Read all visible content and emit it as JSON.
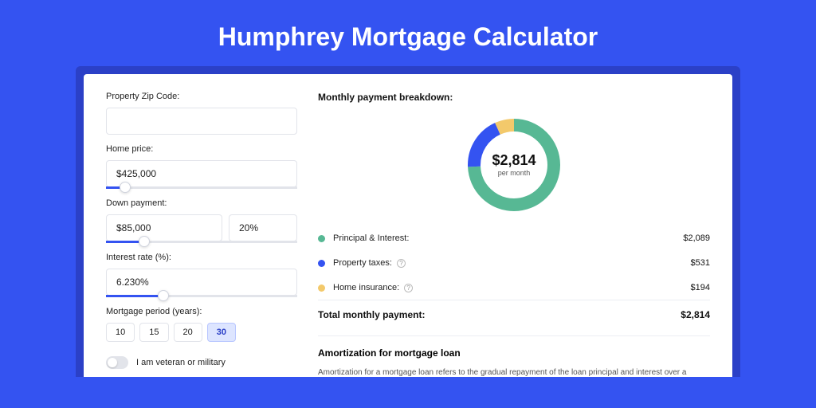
{
  "page": {
    "title": "Humphrey Mortgage Calculator"
  },
  "colors": {
    "bg": "#3453f1",
    "outer": "#2b40c7",
    "principal": "#57b894",
    "taxes": "#3453f1",
    "insurance": "#f3c96b",
    "border": "#e2e4ea"
  },
  "form": {
    "zip": {
      "label": "Property Zip Code:",
      "value": ""
    },
    "price": {
      "label": "Home price:",
      "value": "$425,000",
      "slider_pct": 10
    },
    "down": {
      "label": "Down payment:",
      "amount": "$85,000",
      "pct": "20%",
      "slider_pct": 20
    },
    "rate": {
      "label": "Interest rate (%):",
      "value": "6.230%",
      "slider_pct": 30
    },
    "period": {
      "label": "Mortgage period (years):",
      "options": [
        "10",
        "15",
        "20",
        "30"
      ],
      "active": "30"
    },
    "veteran": {
      "label": "I am veteran or military",
      "on": false
    }
  },
  "breakdown": {
    "title": "Monthly payment breakdown:",
    "center_amount": "$2,814",
    "center_sub": "per month",
    "items": [
      {
        "label": "Principal & Interest:",
        "value": "$2,089",
        "color": "#57b894",
        "info": false
      },
      {
        "label": "Property taxes:",
        "value": "$531",
        "color": "#3453f1",
        "info": true
      },
      {
        "label": "Home insurance:",
        "value": "$194",
        "color": "#f3c96b",
        "info": true
      }
    ],
    "total_label": "Total monthly payment:",
    "total_value": "$2,814",
    "donut": {
      "slices": [
        {
          "color": "#57b894",
          "fraction": 0.742
        },
        {
          "color": "#3453f1",
          "fraction": 0.189
        },
        {
          "color": "#f3c96b",
          "fraction": 0.069
        }
      ],
      "radius": 50,
      "thickness": 16
    }
  },
  "amort": {
    "title": "Amortization for mortgage loan",
    "text": "Amortization for a mortgage loan refers to the gradual repayment of the loan principal and interest over a specified"
  }
}
